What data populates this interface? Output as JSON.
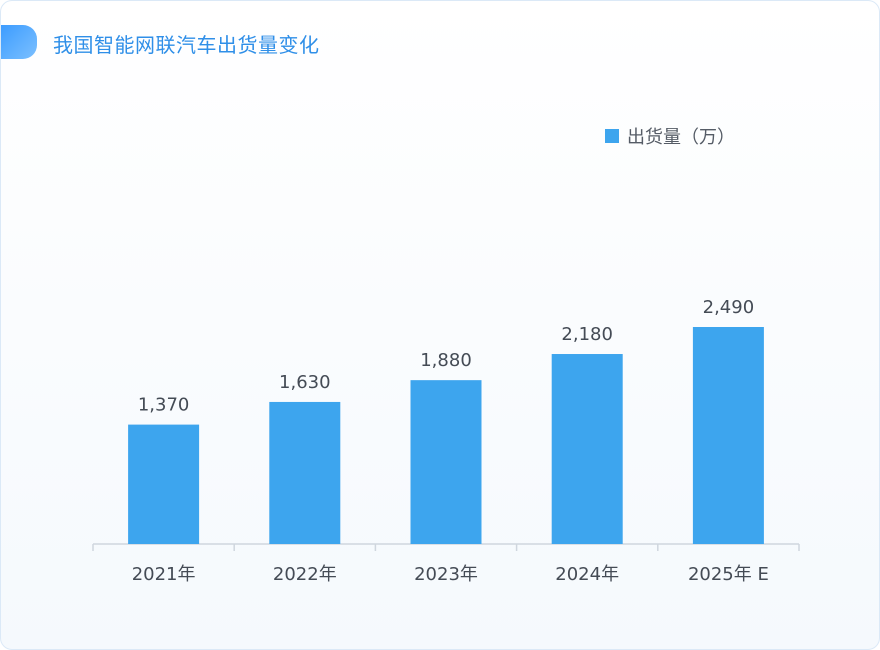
{
  "title": "我国智能网联汽车出货量变化",
  "colors": {
    "bar": "#3da5ee",
    "title": "#2f8fe8",
    "axis": "#cfd6de",
    "text": "#444b55"
  },
  "chart_data": {
    "type": "bar",
    "categories": [
      "2021年",
      "2022年",
      "2023年",
      "2024年",
      "2025年 E"
    ],
    "series": [
      {
        "name": "出货量（万）",
        "values": [
          1370,
          1630,
          1880,
          2180,
          2490
        ]
      }
    ],
    "data_labels": [
      "1,370",
      "1,630",
      "1,880",
      "2,180",
      "2,490"
    ],
    "legend_position": "top-right",
    "grid": false,
    "ylim": [
      0,
      2800
    ]
  }
}
